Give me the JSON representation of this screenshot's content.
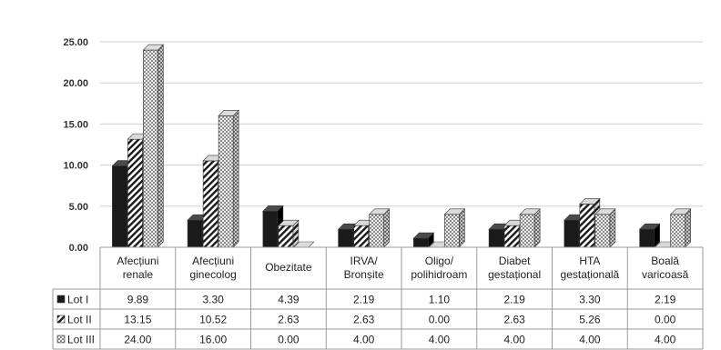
{
  "colors": {
    "lot1": "#1a1a1a",
    "grid": "#cfcfcf",
    "axis": "#8c8c8c",
    "text": "#222222"
  },
  "chart_data": {
    "type": "bar",
    "title": "",
    "xlabel": "",
    "ylabel": "",
    "ylim": [
      0,
      25
    ],
    "yticks": [
      "0.00",
      "5.00",
      "10.00",
      "15.00",
      "20.00",
      "25.00"
    ],
    "grid": true,
    "legend_placement": "data-table-left",
    "categories": [
      [
        "Afecțiuni",
        "renale"
      ],
      [
        "Afecțiuni",
        "ginecolog"
      ],
      [
        "Obezitate"
      ],
      [
        "IRVA/",
        "Bronșite"
      ],
      [
        "Oligo/",
        "polihidroam"
      ],
      [
        "Diabet",
        "gestațional"
      ],
      [
        "HTA",
        "gestațională"
      ],
      [
        "Boală",
        "varicoasă"
      ]
    ],
    "series": [
      {
        "name": "Lot I",
        "pattern": "solid",
        "values": [
          9.89,
          3.3,
          4.39,
          2.19,
          1.1,
          2.19,
          3.3,
          2.19
        ]
      },
      {
        "name": "Lot II",
        "pattern": "diagonal",
        "values": [
          13.15,
          10.52,
          2.63,
          2.63,
          0.0,
          2.63,
          5.26,
          0.0
        ]
      },
      {
        "name": "Lot III",
        "pattern": "checker",
        "values": [
          24.0,
          16.0,
          0.0,
          4.0,
          4.0,
          4.0,
          4.0,
          4.0
        ]
      }
    ]
  }
}
